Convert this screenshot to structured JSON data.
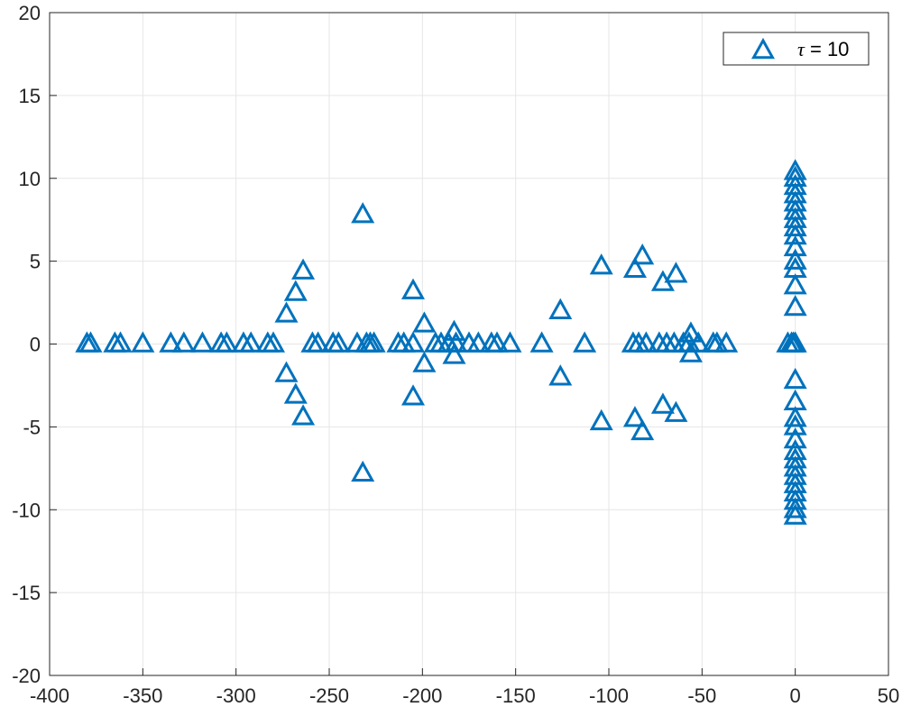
{
  "chart_data": {
    "type": "scatter",
    "marker": "triangle-up-hollow",
    "xlim": [
      -400,
      50
    ],
    "ylim": [
      -20,
      20
    ],
    "grid": true,
    "legend_placement": "top-right",
    "x_ticks": [
      -400,
      -350,
      -300,
      -250,
      -200,
      -150,
      -100,
      -50,
      0,
      50
    ],
    "x_tick_labels": [
      "-400",
      "-350",
      "-300",
      "-250",
      "-200",
      "-150",
      "-100",
      "-50",
      "0",
      "50"
    ],
    "y_ticks": [
      -20,
      -15,
      -10,
      -5,
      0,
      5,
      10,
      15,
      20
    ],
    "y_tick_labels": [
      "-20",
      "-15",
      "-10",
      "-5",
      "0",
      "5",
      "10",
      "15",
      "20"
    ],
    "title": "",
    "xlabel": "",
    "ylabel": "",
    "series": [
      {
        "name": "τ = 10",
        "legend_symbol": "τ",
        "legend_value": " = 10",
        "color": "#0072bd",
        "points": [
          [
            -380,
            0
          ],
          [
            -378,
            0
          ],
          [
            -365,
            0
          ],
          [
            -362,
            0
          ],
          [
            -350,
            0
          ],
          [
            -335,
            0
          ],
          [
            -328,
            0
          ],
          [
            -318,
            0
          ],
          [
            -308,
            0
          ],
          [
            -305,
            0
          ],
          [
            -296,
            0
          ],
          [
            -292,
            0
          ],
          [
            -283,
            0
          ],
          [
            -280,
            0
          ],
          [
            -259,
            0
          ],
          [
            -256,
            0
          ],
          [
            -248,
            0
          ],
          [
            -245,
            0
          ],
          [
            -235,
            0
          ],
          [
            -230,
            0
          ],
          [
            -228,
            0
          ],
          [
            -226,
            0
          ],
          [
            -213,
            0
          ],
          [
            -210,
            0
          ],
          [
            -205,
            0
          ],
          [
            -193,
            0
          ],
          [
            -190,
            0
          ],
          [
            -186,
            0
          ],
          [
            -182,
            0
          ],
          [
            -175,
            0
          ],
          [
            -170,
            0
          ],
          [
            -163,
            0
          ],
          [
            -160,
            0
          ],
          [
            -153,
            0
          ],
          [
            -136,
            0
          ],
          [
            -113,
            0
          ],
          [
            -87,
            0
          ],
          [
            -84,
            0
          ],
          [
            -80,
            0
          ],
          [
            -73,
            0
          ],
          [
            -69,
            0
          ],
          [
            -65,
            0
          ],
          [
            -60,
            0
          ],
          [
            -57,
            0
          ],
          [
            -52,
            0
          ],
          [
            -44,
            0
          ],
          [
            -42,
            0
          ],
          [
            -37,
            0
          ],
          [
            -4,
            0
          ],
          [
            -2,
            0
          ],
          [
            -1,
            0
          ],
          [
            0,
            0
          ],
          [
            -273,
            1.8
          ],
          [
            -273,
            -1.8
          ],
          [
            -268,
            3.1
          ],
          [
            -268,
            -3.1
          ],
          [
            -264,
            4.4
          ],
          [
            -264,
            -4.4
          ],
          [
            -232,
            7.8
          ],
          [
            -232,
            -7.8
          ],
          [
            -205,
            3.2
          ],
          [
            -205,
            -3.2
          ],
          [
            -199,
            1.2
          ],
          [
            -199,
            -1.2
          ],
          [
            -183,
            0.7
          ],
          [
            -183,
            -0.7
          ],
          [
            -126,
            2.0
          ],
          [
            -126,
            -2.0
          ],
          [
            -104,
            4.7
          ],
          [
            -104,
            -4.7
          ],
          [
            -86,
            4.5
          ],
          [
            -86,
            -4.5
          ],
          [
            -82,
            5.3
          ],
          [
            -82,
            -5.3
          ],
          [
            -71,
            3.7
          ],
          [
            -71,
            -3.7
          ],
          [
            -64,
            4.2
          ],
          [
            -64,
            -4.2
          ],
          [
            -56,
            0.6
          ],
          [
            -56,
            -0.6
          ],
          [
            0,
            2.2
          ],
          [
            0,
            -2.2
          ],
          [
            0,
            3.5
          ],
          [
            0,
            -3.5
          ],
          [
            0,
            4.5
          ],
          [
            0,
            -4.5
          ],
          [
            0,
            5.0
          ],
          [
            0,
            -5.0
          ],
          [
            0,
            5.8
          ],
          [
            0,
            -5.8
          ],
          [
            0,
            6.5
          ],
          [
            0,
            -6.5
          ],
          [
            0,
            7.0
          ],
          [
            0,
            -7.0
          ],
          [
            0,
            7.5
          ],
          [
            0,
            -7.5
          ],
          [
            0,
            8.0
          ],
          [
            0,
            -8.0
          ],
          [
            0,
            8.5
          ],
          [
            0,
            -8.5
          ],
          [
            0,
            9.0
          ],
          [
            0,
            -9.0
          ],
          [
            0,
            9.5
          ],
          [
            0,
            -9.5
          ],
          [
            0,
            10.0
          ],
          [
            0,
            -10.0
          ],
          [
            0,
            10.4
          ],
          [
            0,
            -10.4
          ]
        ]
      }
    ]
  }
}
